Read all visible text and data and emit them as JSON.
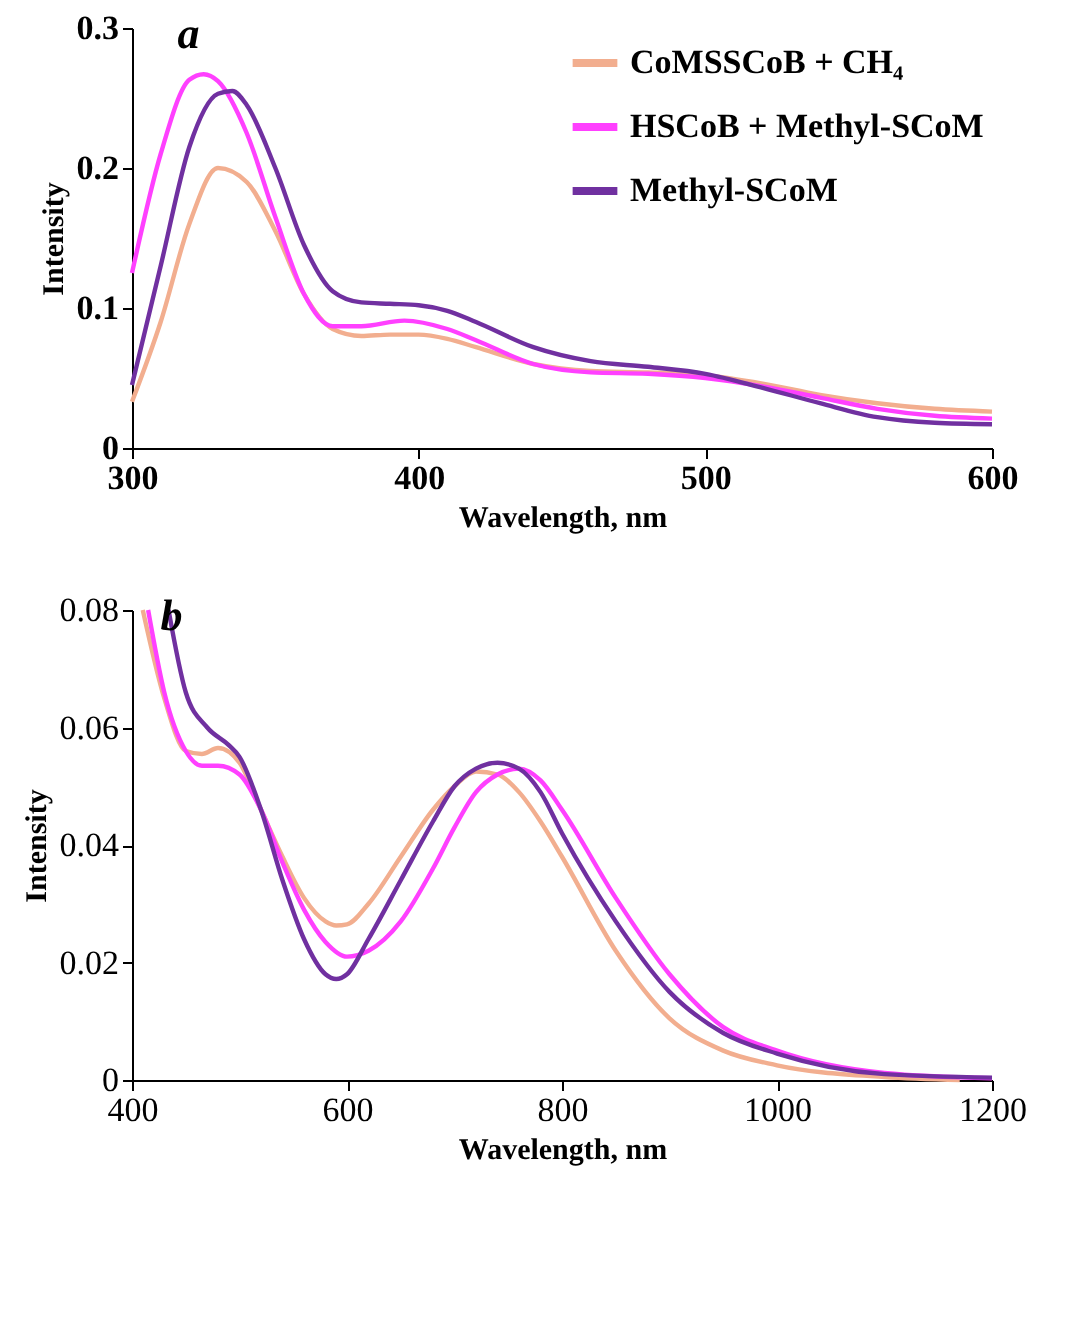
{
  "chart_data": [
    {
      "type": "line",
      "title": "a",
      "xlabel": "Wavelength, nm",
      "ylabel": "Intensity",
      "xlim": [
        300,
        600
      ],
      "xticks": [
        300,
        400,
        500,
        600
      ],
      "ylim": [
        0,
        0.3
      ],
      "yticks": [
        0,
        0.1,
        0.2,
        0.3
      ],
      "legend": "top right",
      "series": [
        {
          "name": "CoMSSCoB + CH₄",
          "color": "#f2ae8f",
          "x": [
            300,
            310,
            320,
            330,
            340,
            350,
            360,
            370,
            380,
            390,
            400,
            410,
            420,
            440,
            460,
            480,
            500,
            520,
            540,
            560,
            580,
            600
          ],
          "values": [
            0.033,
            0.09,
            0.16,
            0.2,
            0.19,
            0.155,
            0.11,
            0.085,
            0.08,
            0.081,
            0.081,
            0.078,
            0.072,
            0.06,
            0.055,
            0.054,
            0.052,
            0.046,
            0.038,
            0.032,
            0.028,
            0.026
          ]
        },
        {
          "name": "HSCoB + Methyl-SCoM",
          "color": "#ff40ff",
          "x": [
            300,
            310,
            320,
            325,
            330,
            340,
            350,
            360,
            370,
            380,
            395,
            410,
            420,
            440,
            460,
            480,
            500,
            520,
            540,
            560,
            580,
            600
          ],
          "values": [
            0.125,
            0.21,
            0.263,
            0.267,
            0.262,
            0.225,
            0.165,
            0.11,
            0.087,
            0.087,
            0.091,
            0.085,
            0.077,
            0.06,
            0.054,
            0.053,
            0.05,
            0.044,
            0.036,
            0.028,
            0.023,
            0.021
          ]
        },
        {
          "name": "Methyl-SCoM",
          "color": "#7030a0",
          "x": [
            300,
            310,
            320,
            330,
            335,
            340,
            350,
            360,
            370,
            380,
            390,
            400,
            410,
            420,
            440,
            460,
            480,
            500,
            520,
            540,
            560,
            580,
            600
          ],
          "values": [
            0.045,
            0.13,
            0.215,
            0.253,
            0.255,
            0.245,
            0.2,
            0.145,
            0.112,
            0.104,
            0.103,
            0.102,
            0.098,
            0.09,
            0.072,
            0.062,
            0.058,
            0.053,
            0.043,
            0.032,
            0.022,
            0.018,
            0.017
          ]
        }
      ]
    },
    {
      "type": "line",
      "title": "b",
      "xlabel": "Wavelength, nm",
      "ylabel": "Intensity",
      "xlim": [
        400,
        1200
      ],
      "xticks": [
        400,
        600,
        800,
        1000,
        1200
      ],
      "ylim": [
        0,
        0.08
      ],
      "yticks": [
        0,
        0.02,
        0.04,
        0.06,
        0.08
      ],
      "series": [
        {
          "color": "#f2ae8f",
          "x": [
            410,
            430,
            450,
            465,
            480,
            500,
            520,
            540,
            560,
            580,
            590,
            600,
            620,
            650,
            680,
            700,
            720,
            740,
            760,
            780,
            800,
            850,
            900,
            950,
            1000,
            1100,
            1170
          ],
          "values": [
            0.08,
            0.065,
            0.056,
            0.0555,
            0.0565,
            0.054,
            0.046,
            0.038,
            0.031,
            0.027,
            0.0263,
            0.0265,
            0.03,
            0.038,
            0.046,
            0.05,
            0.0525,
            0.052,
            0.049,
            0.044,
            0.038,
            0.022,
            0.0105,
            0.005,
            0.0025,
            0.0005,
            0
          ]
        },
        {
          "color": "#ff40ff",
          "x": [
            415,
            430,
            450,
            465,
            480,
            500,
            520,
            540,
            560,
            580,
            600,
            620,
            650,
            680,
            700,
            720,
            740,
            760,
            780,
            800,
            850,
            900,
            950,
            1000,
            1100,
            1200
          ],
          "values": [
            0.08,
            0.066,
            0.056,
            0.0535,
            0.0535,
            0.052,
            0.046,
            0.037,
            0.029,
            0.0235,
            0.021,
            0.022,
            0.027,
            0.036,
            0.043,
            0.049,
            0.052,
            0.053,
            0.051,
            0.046,
            0.031,
            0.018,
            0.009,
            0.005,
            0.0012,
            0.0003
          ]
        },
        {
          "color": "#7030a0",
          "x": [
            434,
            450,
            470,
            490,
            500,
            520,
            540,
            560,
            580,
            590,
            600,
            620,
            650,
            680,
            700,
            720,
            740,
            760,
            780,
            800,
            850,
            900,
            950,
            1000,
            1100,
            1200
          ],
          "values": [
            0.08,
            0.066,
            0.06,
            0.057,
            0.055,
            0.046,
            0.034,
            0.024,
            0.018,
            0.0172,
            0.018,
            0.024,
            0.034,
            0.044,
            0.05,
            0.053,
            0.054,
            0.053,
            0.049,
            0.042,
            0.027,
            0.015,
            0.008,
            0.0045,
            0.001,
            0.0004
          ]
        }
      ]
    }
  ]
}
